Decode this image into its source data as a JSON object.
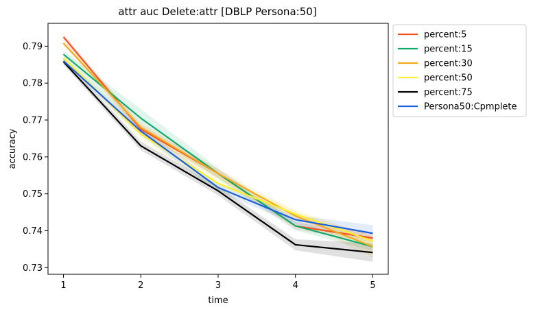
{
  "chart_data": {
    "type": "line",
    "title": "attr auc Delete:attr [DBLP Persona:50]",
    "xlabel": "time",
    "ylabel": "accuracy",
    "x": [
      1,
      2,
      3,
      4,
      5
    ],
    "xlim": [
      0.8,
      5.2
    ],
    "ylim": [
      0.7282,
      0.7962
    ],
    "xticks": [
      "1",
      "2",
      "3",
      "4",
      "5"
    ],
    "yticks": [
      "0.73",
      "0.74",
      "0.75",
      "0.76",
      "0.77",
      "0.78",
      "0.79"
    ],
    "grid": false,
    "legend_position": "outside-right-top",
    "series": [
      {
        "name": "percent:5",
        "color": "#f4511e",
        "values": [
          0.7925,
          0.7675,
          0.7555,
          0.7413,
          0.738
        ],
        "band": [
          0.0008,
          0.0012,
          0.0012,
          0.001,
          0.0012
        ]
      },
      {
        "name": "percent:15",
        "color": "#0daa6b",
        "values": [
          0.7878,
          0.7705,
          0.7555,
          0.7413,
          0.7357
        ],
        "band": [
          0.001,
          0.0025,
          0.0015,
          0.0012,
          0.0012
        ]
      },
      {
        "name": "percent:30",
        "color": "#f4a91d",
        "values": [
          0.7908,
          0.768,
          0.7555,
          0.744,
          0.7357
        ],
        "band": [
          0.0008,
          0.0015,
          0.0012,
          0.0012,
          0.003
        ]
      },
      {
        "name": "percent:50",
        "color": "#ffee2d",
        "values": [
          0.7868,
          0.7662,
          0.7528,
          0.7445,
          0.7372
        ],
        "band": [
          0.0008,
          0.0015,
          0.002,
          0.0012,
          0.0012
        ]
      },
      {
        "name": "percent:75",
        "color": "#000000",
        "values": [
          0.7858,
          0.763,
          0.7508,
          0.7362,
          0.7341
        ],
        "band": [
          0.0008,
          0.0012,
          0.0012,
          0.0015,
          0.0025
        ]
      },
      {
        "name": "Persona50:Cpmplete",
        "color": "#1a5fdc",
        "values": [
          0.786,
          0.767,
          0.7517,
          0.743,
          0.7393
        ],
        "band": [
          0.0008,
          0.0012,
          0.0012,
          0.0012,
          0.0022
        ]
      }
    ]
  }
}
